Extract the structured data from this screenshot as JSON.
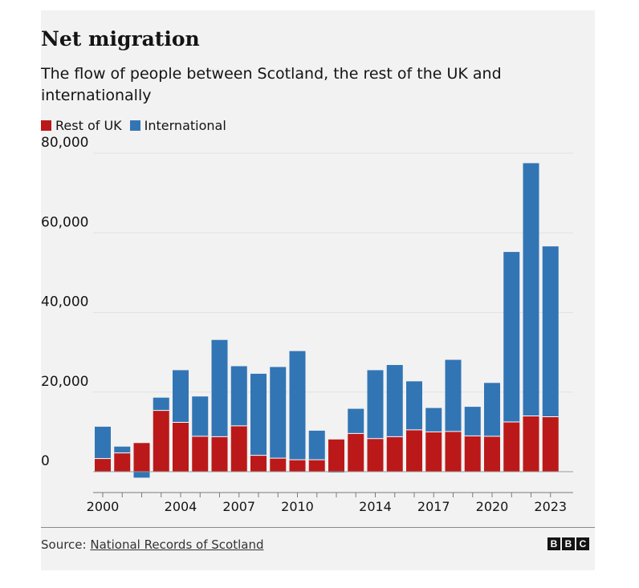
{
  "header": {
    "title": "Net migration",
    "subtitle": "The flow of people between Scotland, the rest of the UK and internationally"
  },
  "legend": [
    {
      "label": "Rest of UK",
      "color": "#bb1919"
    },
    {
      "label": "International",
      "color": "#3275b5"
    }
  ],
  "footer": {
    "source_prefix": "Source: ",
    "source_link": "National Records of Scotland",
    "logo_letters": [
      "B",
      "B",
      "C"
    ]
  },
  "chart_data": {
    "type": "bar",
    "stacked": true,
    "x": [
      2000,
      2001,
      2002,
      2003,
      2004,
      2005,
      2006,
      2007,
      2008,
      2009,
      2010,
      2011,
      2012,
      2013,
      2014,
      2015,
      2016,
      2017,
      2018,
      2019,
      2020,
      2021,
      2022,
      2023
    ],
    "x_tick_labels": [
      "2000",
      "2004",
      "2007",
      "2010",
      "2014",
      "2017",
      "2020",
      "2023"
    ],
    "series": [
      {
        "name": "Rest of UK",
        "color": "#bb1919",
        "values": [
          3300,
          4700,
          7200,
          15400,
          12400,
          8900,
          8800,
          11500,
          4100,
          3400,
          3000,
          3000,
          8100,
          9600,
          8300,
          8800,
          10500,
          10000,
          10100,
          9000,
          8900,
          12500,
          14000,
          13800
        ]
      },
      {
        "name": "International",
        "color": "#3275b5",
        "values": [
          8000,
          1600,
          -1500,
          3200,
          13100,
          10000,
          24300,
          15000,
          20500,
          22900,
          27300,
          7300,
          -200,
          6200,
          17200,
          18000,
          12200,
          6000,
          18000,
          7300,
          13400,
          42700,
          63500,
          42800
        ]
      }
    ],
    "yticks": [
      0,
      20000,
      40000,
      60000,
      80000
    ],
    "ytick_labels": [
      "0",
      "20,000",
      "40,000",
      "60,000",
      "80,000"
    ],
    "ylim": [
      -2000,
      80000
    ],
    "grid": true,
    "legend_position": "top-left"
  }
}
